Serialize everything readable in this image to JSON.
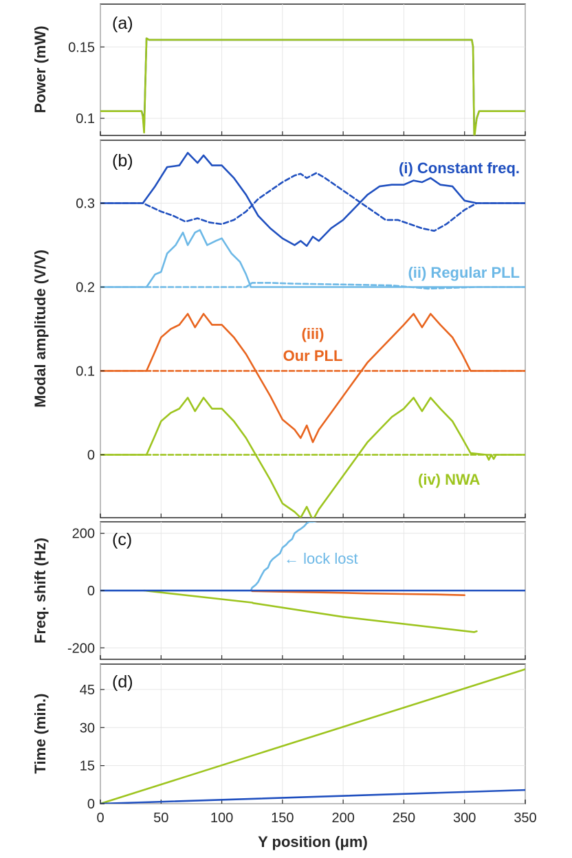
{
  "chart_data": [
    {
      "type": "line",
      "panel": "(a)",
      "ylabel": "Power (mW)",
      "xlabel": "",
      "xlim": [
        0,
        350
      ],
      "ylim": [
        0.088,
        0.18
      ],
      "yticks": [
        0.1,
        0.15
      ],
      "ytick_labels": [
        "0.1",
        "0.15"
      ],
      "series": [
        {
          "name": "Constant freq.",
          "color": "#1f4fbf",
          "x": [
            0,
            34,
            35,
            36,
            38,
            40,
            300,
            306,
            307,
            308,
            310,
            312,
            350
          ],
          "y": [
            0.105,
            0.105,
            0.102,
            0.092,
            0.156,
            0.155,
            0.155,
            0.155,
            0.15,
            0.088,
            0.1,
            0.105,
            0.105
          ]
        },
        {
          "name": "NWA",
          "color": "#9dc41e",
          "x": [
            0,
            34,
            35,
            36,
            38,
            40,
            300,
            306,
            307,
            308,
            310,
            312,
            350
          ],
          "y": [
            0.105,
            0.105,
            0.101,
            0.09,
            0.156,
            0.155,
            0.155,
            0.155,
            0.15,
            0.086,
            0.1,
            0.105,
            0.105
          ]
        }
      ]
    },
    {
      "type": "line",
      "panel": "(b)",
      "ylabel": "Modal amplitude (V/V)",
      "xlabel": "",
      "xlim": [
        0,
        350
      ],
      "ylim": [
        -0.075,
        0.375
      ],
      "yticks": [
        0,
        0.1,
        0.2,
        0.3
      ],
      "ytick_labels": [
        "0",
        "0.1",
        "0.2",
        "0.3"
      ],
      "annotations": [
        {
          "text": "(i) Constant freq.",
          "color": "#1f4fbf"
        },
        {
          "text": "(ii) Regular PLL",
          "color": "#6cb8e6"
        },
        {
          "text": "(iii)",
          "color": "#e8641e"
        },
        {
          "text": "Our PLL",
          "color": "#e8641e"
        },
        {
          "text": "(iv) NWA",
          "color": "#9dc41e"
        }
      ],
      "series": [
        {
          "name": "(i) solid",
          "color": "#1f4fbf",
          "style": "solid",
          "x": [
            0,
            35,
            45,
            55,
            65,
            72,
            80,
            85,
            92,
            100,
            110,
            120,
            130,
            140,
            150,
            160,
            165,
            170,
            175,
            180,
            190,
            200,
            210,
            220,
            230,
            240,
            250,
            258,
            265,
            272,
            280,
            290,
            300,
            310,
            350
          ],
          "y": [
            0.3,
            0.3,
            0.32,
            0.343,
            0.345,
            0.36,
            0.348,
            0.357,
            0.345,
            0.345,
            0.33,
            0.31,
            0.285,
            0.27,
            0.258,
            0.25,
            0.255,
            0.249,
            0.26,
            0.255,
            0.27,
            0.28,
            0.295,
            0.31,
            0.32,
            0.322,
            0.322,
            0.327,
            0.325,
            0.33,
            0.322,
            0.32,
            0.303,
            0.3,
            0.3
          ]
        },
        {
          "name": "(i) dashed",
          "color": "#1f4fbf",
          "style": "dashed",
          "x": [
            0,
            35,
            50,
            60,
            70,
            80,
            90,
            100,
            110,
            120,
            130,
            140,
            150,
            160,
            165,
            170,
            178,
            185,
            195,
            205,
            215,
            225,
            235,
            245,
            255,
            265,
            275,
            285,
            300,
            310,
            350
          ],
          "y": [
            0.3,
            0.3,
            0.29,
            0.285,
            0.278,
            0.282,
            0.277,
            0.275,
            0.28,
            0.29,
            0.305,
            0.315,
            0.325,
            0.333,
            0.335,
            0.33,
            0.336,
            0.33,
            0.32,
            0.31,
            0.3,
            0.29,
            0.28,
            0.28,
            0.275,
            0.27,
            0.267,
            0.275,
            0.292,
            0.3,
            0.3
          ]
        },
        {
          "name": "(ii) solid",
          "color": "#6cb8e6",
          "style": "solid",
          "x": [
            0,
            38,
            45,
            50,
            55,
            62,
            68,
            72,
            78,
            82,
            88,
            95,
            100,
            108,
            115,
            120,
            124,
            126,
            350
          ],
          "y": [
            0.2,
            0.2,
            0.215,
            0.218,
            0.24,
            0.25,
            0.265,
            0.25,
            0.265,
            0.268,
            0.25,
            0.255,
            0.258,
            0.24,
            0.23,
            0.215,
            0.2,
            0.2,
            0.2
          ]
        },
        {
          "name": "(ii) dashed",
          "color": "#6cb8e6",
          "style": "dashed",
          "x": [
            0,
            40,
            80,
            120,
            125,
            140,
            160,
            200,
            240,
            270,
            310,
            350
          ],
          "y": [
            0.2,
            0.2,
            0.2,
            0.2,
            0.205,
            0.205,
            0.204,
            0.203,
            0.202,
            0.198,
            0.2,
            0.2
          ]
        },
        {
          "name": "(iii) solid",
          "color": "#e8641e",
          "style": "solid",
          "x": [
            0,
            38,
            45,
            50,
            58,
            65,
            72,
            78,
            85,
            92,
            100,
            110,
            120,
            130,
            140,
            150,
            160,
            165,
            170,
            175,
            180,
            190,
            200,
            210,
            220,
            230,
            240,
            250,
            258,
            265,
            272,
            280,
            290,
            298,
            305,
            350
          ],
          "y": [
            0.1,
            0.1,
            0.123,
            0.14,
            0.15,
            0.155,
            0.168,
            0.152,
            0.168,
            0.155,
            0.155,
            0.14,
            0.12,
            0.095,
            0.07,
            0.042,
            0.03,
            0.02,
            0.035,
            0.015,
            0.03,
            0.05,
            0.07,
            0.09,
            0.11,
            0.125,
            0.14,
            0.155,
            0.168,
            0.152,
            0.168,
            0.155,
            0.14,
            0.12,
            0.1,
            0.1
          ]
        },
        {
          "name": "(iii) dashed",
          "color": "#e8641e",
          "style": "dashed",
          "x": [
            0,
            350
          ],
          "y": [
            0.1,
            0.1
          ]
        },
        {
          "name": "(iv) solid",
          "color": "#9dc41e",
          "style": "solid",
          "x": [
            0,
            38,
            45,
            50,
            58,
            65,
            72,
            78,
            85,
            92,
            100,
            110,
            120,
            130,
            140,
            150,
            160,
            165,
            170,
            175,
            180,
            190,
            200,
            210,
            220,
            230,
            240,
            250,
            258,
            265,
            272,
            280,
            290,
            298,
            305,
            318,
            320,
            322,
            324,
            326,
            330,
            350
          ],
          "y": [
            0,
            0,
            0.023,
            0.04,
            0.05,
            0.055,
            0.068,
            0.052,
            0.068,
            0.055,
            0.055,
            0.04,
            0.02,
            -0.005,
            -0.03,
            -0.058,
            -0.068,
            -0.075,
            -0.062,
            -0.078,
            -0.065,
            -0.045,
            -0.025,
            -0.005,
            0.015,
            0.03,
            0.045,
            0.055,
            0.068,
            0.052,
            0.068,
            0.055,
            0.04,
            0.02,
            0.002,
            0,
            -0.006,
            0,
            -0.005,
            0,
            0,
            0
          ]
        },
        {
          "name": "(iv) dashed",
          "color": "#9dc41e",
          "style": "dashed",
          "x": [
            0,
            350
          ],
          "y": [
            0,
            0
          ]
        }
      ]
    },
    {
      "type": "line",
      "panel": "(c)",
      "ylabel": "Freq. shift (Hz)",
      "xlabel": "",
      "xlim": [
        0,
        350
      ],
      "ylim": [
        -240,
        240
      ],
      "yticks": [
        -200,
        0,
        200
      ],
      "ytick_labels": [
        "-200",
        "0",
        "200"
      ],
      "annotations": [
        {
          "text": "← lock lost",
          "color": "#6cb8e6"
        }
      ],
      "series": [
        {
          "name": "Regular PLL",
          "color": "#6cb8e6",
          "x": [
            0,
            124,
            125,
            128,
            130,
            133,
            135,
            138,
            140,
            142,
            145,
            148,
            150,
            153,
            155,
            158,
            160,
            163,
            165,
            168,
            170,
            172,
            175,
            178
          ],
          "y": [
            0,
            0,
            10,
            20,
            30,
            55,
            70,
            80,
            100,
            110,
            120,
            130,
            150,
            160,
            170,
            180,
            200,
            210,
            215,
            225,
            235,
            240,
            240,
            243
          ]
        },
        {
          "name": "Our PLL",
          "color": "#e8641e",
          "x": [
            125,
            150,
            200,
            220,
            222,
            250,
            280,
            300
          ],
          "y": [
            -2,
            -4,
            -8,
            -10,
            -10,
            -12,
            -14,
            -16
          ]
        },
        {
          "name": "NWA",
          "color": "#9dc41e",
          "x": [
            36,
            125,
            126,
            200,
            308,
            310
          ],
          "y": [
            0,
            -42,
            -44,
            -92,
            -145,
            -142
          ]
        },
        {
          "name": "Constant freq.",
          "color": "#1f4fbf",
          "x": [
            0,
            350
          ],
          "y": [
            0,
            0
          ]
        }
      ]
    },
    {
      "type": "line",
      "panel": "(d)",
      "ylabel": "Time (min.)",
      "xlabel": "Y position (μm)",
      "xlim": [
        0,
        350
      ],
      "ylim": [
        0,
        55
      ],
      "yticks": [
        0,
        15,
        30,
        45
      ],
      "ytick_labels": [
        "0",
        "15",
        "30",
        "45"
      ],
      "xticks": [
        0,
        50,
        100,
        150,
        200,
        250,
        300,
        350
      ],
      "xtick_labels": [
        "0",
        "50",
        "100",
        "150",
        "200",
        "250",
        "300",
        "350"
      ],
      "series": [
        {
          "name": "NWA",
          "color": "#9dc41e",
          "x": [
            0,
            350
          ],
          "y": [
            0,
            53
          ]
        },
        {
          "name": "Constant freq.",
          "color": "#1f4fbf",
          "x": [
            0,
            350
          ],
          "y": [
            0,
            5.4
          ]
        }
      ]
    }
  ]
}
